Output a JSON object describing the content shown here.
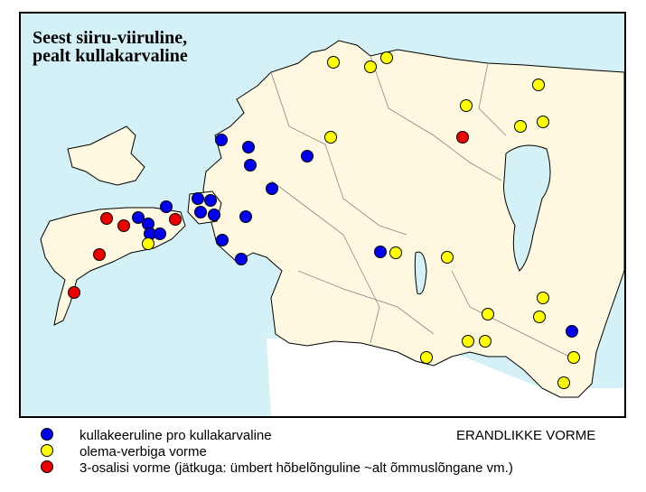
{
  "map": {
    "title_lines": [
      "Seest siiru-viiruline,",
      "pealt kullakarvaline"
    ],
    "legend": [
      "kullakeeruline pro kullakarvaline",
      "olema-verbiga vorme",
      "3-osalisi vorme (jätkuga: ümbert hõbelõnguline ~alt õmmuslõngane vm.)"
    ],
    "note": "ERANDLIKKE VORME"
  }
}
